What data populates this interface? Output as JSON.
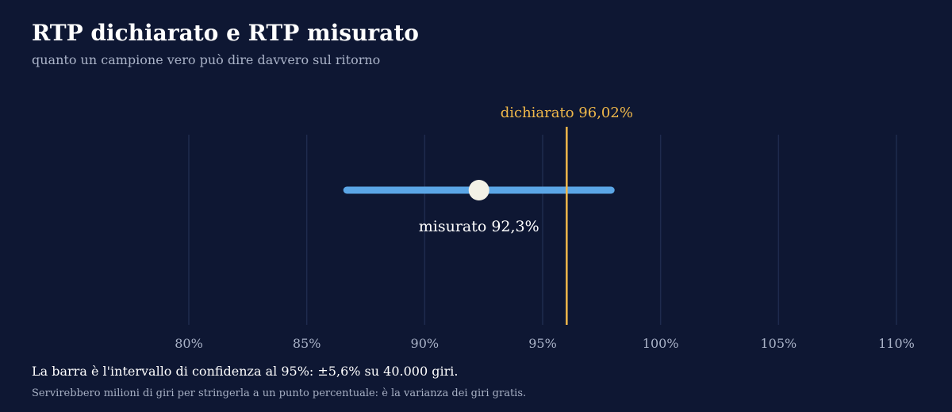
{
  "title": "RTP dichiarato e RTP misurato",
  "subtitle": "quanto un campione vero può dire davvero sul ritorno",
  "chart_data": {
    "type": "scatter",
    "x_ticks": [
      80,
      85,
      90,
      95,
      100,
      105,
      110
    ],
    "x_tick_labels": [
      "80%",
      "85%",
      "90%",
      "95%",
      "100%",
      "105%",
      "110%"
    ],
    "xlim": [
      80,
      110
    ],
    "grid": true,
    "declared": {
      "value": 96.02,
      "label": "dichiarato 96,02%"
    },
    "measured": {
      "value": 92.3,
      "ci_low": 86.7,
      "ci_high": 97.9,
      "label": "misurato 92,3%"
    }
  },
  "note": "La barra è l'intervallo di confidenza al 95%: ±5,6% su 40.000 giri.",
  "footnote": "Servirebbero milioni di giri per stringerla a un punto percentuale: è la varianza dei giri gratis.",
  "colors": {
    "background": "#0e1733",
    "grid": "#1f2b4e",
    "declared": "#f0b84a",
    "interval": "#5ba6e6",
    "point": "#f3f1e6",
    "tick": "#aab3c8"
  }
}
